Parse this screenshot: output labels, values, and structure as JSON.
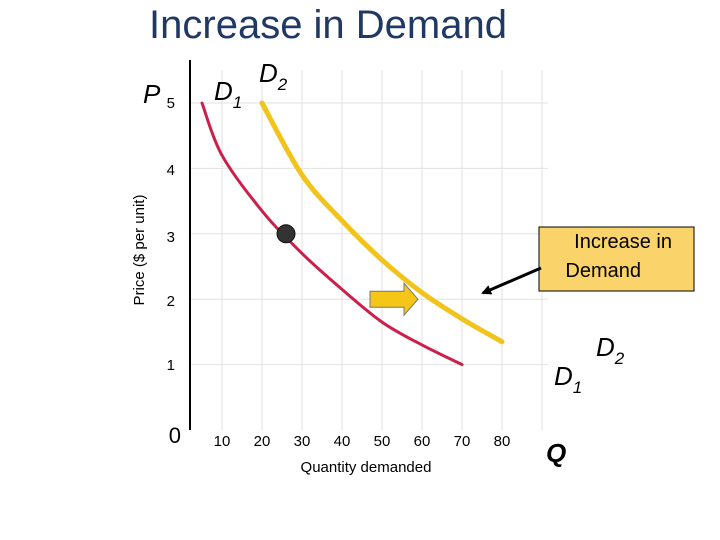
{
  "page": {
    "title": "Increase in Demand"
  },
  "chart_data": {
    "type": "line",
    "title": "Increase in Demand",
    "xlabel": "Quantity demanded",
    "ylabel": "Price ($ per unit)",
    "x_axis_symbol": "Q",
    "y_axis_symbol": "P",
    "origin_label": "0",
    "x_ticks": [
      "10",
      "20",
      "30",
      "40",
      "50",
      "60",
      "70",
      "80"
    ],
    "y_ticks": [
      "1",
      "2",
      "3",
      "4",
      "5"
    ],
    "xlim": [
      0,
      80
    ],
    "ylim": [
      0,
      5
    ],
    "grid": "horizontal and vertical",
    "series": [
      {
        "name": "D1",
        "label_main": "D",
        "label_sub": "1",
        "color": "#cc1f4a",
        "x": [
          5,
          10,
          20,
          30,
          40,
          50,
          60,
          70
        ],
        "y": [
          5.0,
          4.2,
          3.35,
          2.7,
          2.15,
          1.65,
          1.3,
          1.0
        ]
      },
      {
        "name": "D2",
        "label_main": "D",
        "label_sub": "2",
        "color": "#f2c31b",
        "x": [
          20,
          30,
          40,
          50,
          60,
          70,
          80
        ],
        "y": [
          5.0,
          3.9,
          3.2,
          2.6,
          2.1,
          1.7,
          1.35
        ]
      }
    ],
    "marker": {
      "x": 26,
      "y": 3,
      "color": "#333333"
    },
    "annotation": {
      "lines": [
        "Increase in",
        "Demand"
      ],
      "background": "#fbd36b"
    },
    "shift_arrow": {
      "from_x": 47,
      "to_x": 59,
      "y": 2,
      "color": "#f5c518"
    }
  }
}
